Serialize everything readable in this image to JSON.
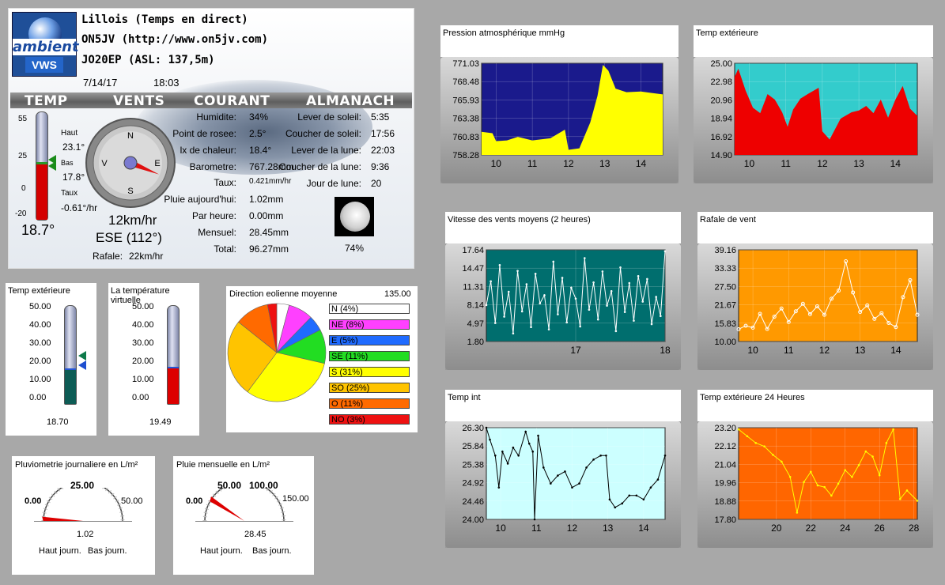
{
  "station": {
    "name": "Lillois (Temps en direct)",
    "callsign": "ON5JV  (http://www.on5jv.com)",
    "locator": "JO20EP (ASL: 137,5m)",
    "date": "7/14/17",
    "time": "18:03",
    "logo_top": "ambient",
    "logo_bottom": "VWS"
  },
  "sections": {
    "temp": "TEMP",
    "vents": "VENTS",
    "courant": "COURANT",
    "almanach": "ALMANACH"
  },
  "thermo": {
    "ticks": [
      "55",
      "25",
      "0",
      "-20"
    ],
    "haut_label": "Haut",
    "haut_value": "23.1°",
    "bas_label": "Bas",
    "bas_value": "17.8°",
    "taux_label": "Taux",
    "taux_value": "-0.61°/hr",
    "current": "18.7°",
    "level_c": 18.7,
    "min_c": -20,
    "max_c": 55
  },
  "wind": {
    "n": "N",
    "e": "E",
    "s": "S",
    "w": "V",
    "speed": "12km/hr",
    "direction": "ESE (112°)",
    "gust_label": "Rafale:",
    "gust_value": "22km/hr",
    "bearing_deg": 112
  },
  "current": {
    "rows": [
      {
        "label": "Humidite:",
        "value": "34%"
      },
      {
        "label": "Point de rosee:",
        "value": "2.5°"
      },
      {
        "label": "lx de chaleur:",
        "value": "18.4°"
      },
      {
        "label": "Barometre:",
        "value": "767.28mm"
      },
      {
        "label": "Taux:",
        "value": "0.421mm/hr"
      },
      {
        "label": "Pluie aujourd'hui:",
        "value": "1.02mm"
      },
      {
        "label": "Par heure:",
        "value": "0.00mm"
      },
      {
        "label": "Mensuel:",
        "value": "28.45mm"
      },
      {
        "label": "Total:",
        "value": "96.27mm"
      }
    ]
  },
  "almanach": {
    "rows": [
      {
        "label": "Lever de soleil:",
        "value": "5:35"
      },
      {
        "label": "Coucher de soleil:",
        "value": "17:56"
      },
      {
        "label": "Lever de la lune:",
        "value": "22:03"
      },
      {
        "label": "Coucher de la lune:",
        "value": "9:36"
      },
      {
        "label": "Jour de lune:",
        "value": "20"
      }
    ],
    "moon_pct": "74%"
  },
  "temp_ext_gauge": {
    "title": "Temp extérieure",
    "ticks": [
      "50.00",
      "40.00",
      "30.00",
      "20.00",
      "10.00",
      "0.00"
    ],
    "value": "18.70",
    "level": 18.7
  },
  "virtual_gauge": {
    "title": "La température virtuelle",
    "ticks": [
      "50.00",
      "40.00",
      "30.00",
      "20.00",
      "10.00",
      "0.00"
    ],
    "value": "19.49",
    "level": 19.49
  },
  "wind_pie": {
    "title": "Direction eolienne moyenne",
    "value": "135.00",
    "slices": [
      {
        "label": "N  (4%)",
        "pct": 4,
        "color": "#ffffff"
      },
      {
        "label": "NE (8%)",
        "pct": 8,
        "color": "#ff40ff"
      },
      {
        "label": "E  (5%)",
        "pct": 5,
        "color": "#1f6bff"
      },
      {
        "label": "SE (11%)",
        "pct": 11,
        "color": "#22dd22"
      },
      {
        "label": "S  (31%)",
        "pct": 31,
        "color": "#ffff00"
      },
      {
        "label": "SO (25%)",
        "pct": 25,
        "color": "#ffc400"
      },
      {
        "label": "O  (11%)",
        "pct": 11,
        "color": "#ff6a00"
      },
      {
        "label": "NO (3%)",
        "pct": 3,
        "color": "#ee1111"
      }
    ]
  },
  "rain_day": {
    "title": "Pluviometrie journaliere en L/m²",
    "t0": "0.00",
    "t1": "25.00",
    "t2": "50.00",
    "value": "1.02",
    "hi": "Haut journ.",
    "lo": "Bas journ.",
    "level": 1.02,
    "max": 50
  },
  "rain_month": {
    "title": "Pluie mensuelle en L/m²",
    "t0": "0.00",
    "t1": "50.00",
    "t2": "100.00",
    "t3": "150.00",
    "value": "28.45",
    "hi": "Haut journ.",
    "lo": "Bas journ.",
    "level": 28.45,
    "max": 150
  },
  "chart_data": [
    {
      "type": "area",
      "title": "Pression atmosphérique mmHg",
      "plot_bg": "#1a1a8c",
      "fill": "#ffff00",
      "y_ticks": [
        "771.03",
        "768.48",
        "765.93",
        "763.38",
        "760.83",
        "758.28"
      ],
      "ylim": [
        758.28,
        771.03
      ],
      "x_ticks": [
        "10",
        "11",
        "12",
        "13",
        "14"
      ],
      "xlim": [
        9.6,
        14.6
      ],
      "x": [
        9.6,
        9.9,
        10.0,
        10.3,
        10.6,
        11.0,
        11.5,
        11.9,
        12.0,
        12.3,
        12.6,
        12.8,
        12.95,
        13.1,
        13.3,
        13.6,
        14.0,
        14.3,
        14.6
      ],
      "y": [
        761.5,
        761.3,
        760.2,
        760.3,
        760.8,
        760.3,
        760.6,
        761.8,
        759.0,
        759.2,
        762.8,
        766.5,
        770.8,
        770.0,
        767.5,
        767.0,
        767.1,
        766.9,
        766.7
      ]
    },
    {
      "type": "area",
      "title": "Temp extérieure",
      "plot_bg": "#33cccc",
      "fill": "#ee0000",
      "y_ticks": [
        "25.00",
        "22.98",
        "20.96",
        "18.94",
        "16.92",
        "14.90"
      ],
      "ylim": [
        14.9,
        25.0
      ],
      "x_ticks": [
        "10",
        "11",
        "12",
        "13",
        "14"
      ],
      "xlim": [
        9.6,
        14.6
      ],
      "x": [
        9.6,
        9.7,
        9.9,
        10.1,
        10.3,
        10.5,
        10.7,
        10.9,
        11.05,
        11.2,
        11.4,
        11.6,
        11.9,
        12.0,
        12.2,
        12.5,
        12.8,
        13.0,
        13.2,
        13.4,
        13.6,
        13.8,
        14.0,
        14.2,
        14.4,
        14.6
      ],
      "y": [
        23.5,
        24.4,
        22.0,
        20.1,
        19.5,
        21.6,
        21.0,
        19.6,
        18.0,
        19.9,
        21.1,
        21.6,
        22.3,
        17.5,
        16.6,
        18.9,
        19.6,
        19.8,
        20.3,
        19.5,
        21.0,
        19.0,
        21.0,
        22.5,
        20.0,
        19.2
      ]
    },
    {
      "type": "line",
      "title": "Vitesse des vents moyens (2 heures)",
      "plot_bg": "#006e6e",
      "line": "#ffffff",
      "y_ticks": [
        "17.64",
        "14.47",
        "11.31",
        "8.14",
        "4.97",
        "1.80"
      ],
      "ylim": [
        1.8,
        17.64
      ],
      "x_ticks": [
        "17",
        "18"
      ],
      "xlim": [
        16.0,
        18.0
      ],
      "x": [
        16.0,
        16.05,
        16.1,
        16.15,
        16.2,
        16.25,
        16.3,
        16.35,
        16.4,
        16.45,
        16.5,
        16.55,
        16.6,
        16.65,
        16.7,
        16.75,
        16.8,
        16.85,
        16.9,
        16.95,
        17.0,
        17.05,
        17.1,
        17.15,
        17.2,
        17.25,
        17.3,
        17.35,
        17.4,
        17.45,
        17.5,
        17.55,
        17.6,
        17.65,
        17.7,
        17.75,
        17.8,
        17.85,
        17.9,
        17.95,
        18.0
      ],
      "y": [
        8.1,
        12.2,
        5.0,
        15.0,
        6.1,
        10.4,
        3.2,
        14.0,
        7.0,
        11.7,
        4.3,
        13.5,
        8.4,
        9.8,
        3.9,
        15.6,
        6.5,
        12.8,
        5.1,
        11.1,
        9.2,
        4.4,
        16.2,
        7.3,
        12.0,
        5.6,
        13.9,
        8.0,
        10.5,
        3.6,
        14.6,
        6.9,
        11.9,
        5.4,
        13.1,
        8.7,
        12.6,
        4.8,
        9.5,
        6.2,
        17.4
      ]
    },
    {
      "type": "line",
      "title": "Rafale de vent",
      "plot_bg": "#ff9900",
      "line": "#ffffff",
      "y_ticks": [
        "39.16",
        "33.33",
        "27.50",
        "21.67",
        "15.83",
        "10.00"
      ],
      "ylim": [
        10.0,
        39.16
      ],
      "x_ticks": [
        "10",
        "11",
        "12",
        "13",
        "14"
      ],
      "xlim": [
        9.6,
        14.6
      ],
      "x": [
        9.6,
        9.8,
        10.0,
        10.2,
        10.4,
        10.6,
        10.8,
        11.0,
        11.2,
        11.4,
        11.6,
        11.8,
        12.0,
        12.2,
        12.4,
        12.6,
        12.8,
        13.0,
        13.2,
        13.4,
        13.6,
        13.8,
        14.0,
        14.2,
        14.4,
        14.6
      ],
      "y": [
        13.9,
        15.0,
        14.4,
        18.8,
        14.0,
        17.9,
        20.5,
        16.2,
        19.6,
        22.0,
        18.7,
        21.2,
        18.5,
        23.6,
        26.2,
        35.5,
        25.6,
        19.4,
        21.5,
        17.2,
        19.0,
        15.9,
        14.6,
        24.1,
        29.5,
        18.5
      ]
    },
    {
      "type": "line",
      "title": "Temp int",
      "plot_bg": "#ccffff",
      "line": "#000000",
      "y_ticks": [
        "26.30",
        "25.84",
        "25.38",
        "24.92",
        "24.46",
        "24.00"
      ],
      "ylim": [
        24.0,
        26.3
      ],
      "x_ticks": [
        "10",
        "11",
        "12",
        "13",
        "14"
      ],
      "xlim": [
        9.6,
        14.6
      ],
      "x": [
        9.6,
        9.7,
        9.85,
        9.95,
        10.05,
        10.2,
        10.35,
        10.5,
        10.7,
        10.8,
        10.9,
        10.95,
        11.05,
        11.2,
        11.4,
        11.6,
        11.8,
        12.0,
        12.2,
        12.4,
        12.6,
        12.8,
        12.95,
        13.05,
        13.2,
        13.4,
        13.6,
        13.8,
        14.0,
        14.2,
        14.4,
        14.6
      ],
      "y": [
        26.3,
        26.0,
        25.6,
        24.8,
        25.7,
        25.4,
        25.8,
        25.6,
        26.2,
        25.9,
        25.7,
        24.0,
        26.1,
        25.3,
        24.9,
        25.1,
        25.2,
        24.8,
        24.9,
        25.3,
        25.5,
        25.6,
        25.6,
        24.5,
        24.3,
        24.4,
        24.6,
        24.6,
        24.5,
        24.8,
        25.0,
        25.6
      ]
    },
    {
      "type": "line",
      "title": "Temp extérieure 24 Heures",
      "plot_bg": "#ff6600",
      "line": "#ffff00",
      "y_ticks": [
        "23.20",
        "22.12",
        "21.04",
        "19.96",
        "18.88",
        "17.80"
      ],
      "ylim": [
        17.8,
        23.2
      ],
      "x_ticks": [
        "20",
        "22",
        "24",
        "26",
        "28"
      ],
      "xlim": [
        17.8,
        28.2
      ],
      "x": [
        17.8,
        18.3,
        18.8,
        19.3,
        19.8,
        20.3,
        20.8,
        21.2,
        21.6,
        22.0,
        22.4,
        22.8,
        23.2,
        23.6,
        24.0,
        24.4,
        24.8,
        25.2,
        25.6,
        26.0,
        26.4,
        26.8,
        27.2,
        27.6,
        28.2
      ],
      "y": [
        23.1,
        22.7,
        22.3,
        22.1,
        21.6,
        21.2,
        20.3,
        18.2,
        20.0,
        20.6,
        19.8,
        19.7,
        19.2,
        19.9,
        20.7,
        20.3,
        21.0,
        21.8,
        21.5,
        20.4,
        22.3,
        23.1,
        19.0,
        19.5,
        18.9
      ]
    }
  ]
}
